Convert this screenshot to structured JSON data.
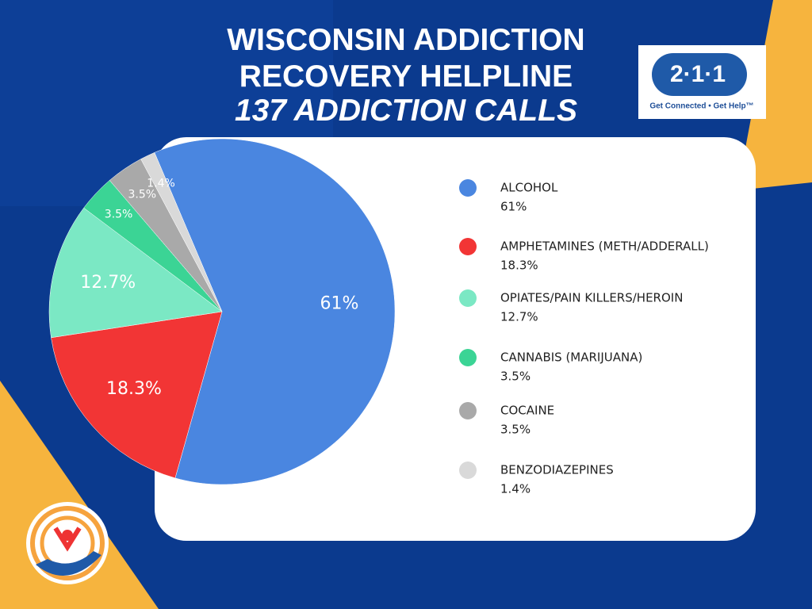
{
  "chart_data": {
    "type": "pie",
    "title": "WISCONSIN ADDICTION RECOVERY HELPLINE",
    "subtitle": "137 ADDICTION CALLS",
    "categories": [
      "ALCOHOL",
      "AMPHETAMINES (METH/ADDERALL)",
      "OPIATES/PAIN KILLERS/HEROIN",
      "CANNABIS (MARIJUANA)",
      "COCAINE",
      "BENZODIAZEPINES"
    ],
    "values": [
      61,
      18.3,
      12.7,
      3.5,
      3.5,
      1.4
    ],
    "value_labels": [
      "61%",
      "18.3%",
      "12.7%",
      "3.5%",
      "3.5%",
      "1.4%"
    ],
    "colors": [
      "#4a86e0",
      "#f23535",
      "#7be8c4",
      "#3bd495",
      "#a9a9a9",
      "#d9d9d9"
    ],
    "legend": "right"
  },
  "logo": {
    "number": "2·1·1",
    "tagline": "Get Connected • Get Help™"
  }
}
